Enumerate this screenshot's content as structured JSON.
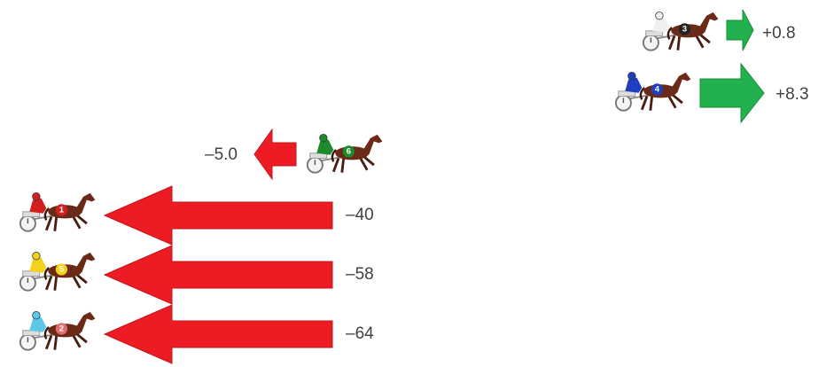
{
  "items": [
    {
      "horse": "3",
      "change": "+0.8"
    },
    {
      "horse": "4",
      "change": "+8.3"
    },
    {
      "horse": "6",
      "change": "–5.0"
    },
    {
      "horse": "1",
      "change": "–40"
    },
    {
      "horse": "5",
      "change": "–58"
    },
    {
      "horse": "2",
      "change": "–64"
    }
  ]
}
